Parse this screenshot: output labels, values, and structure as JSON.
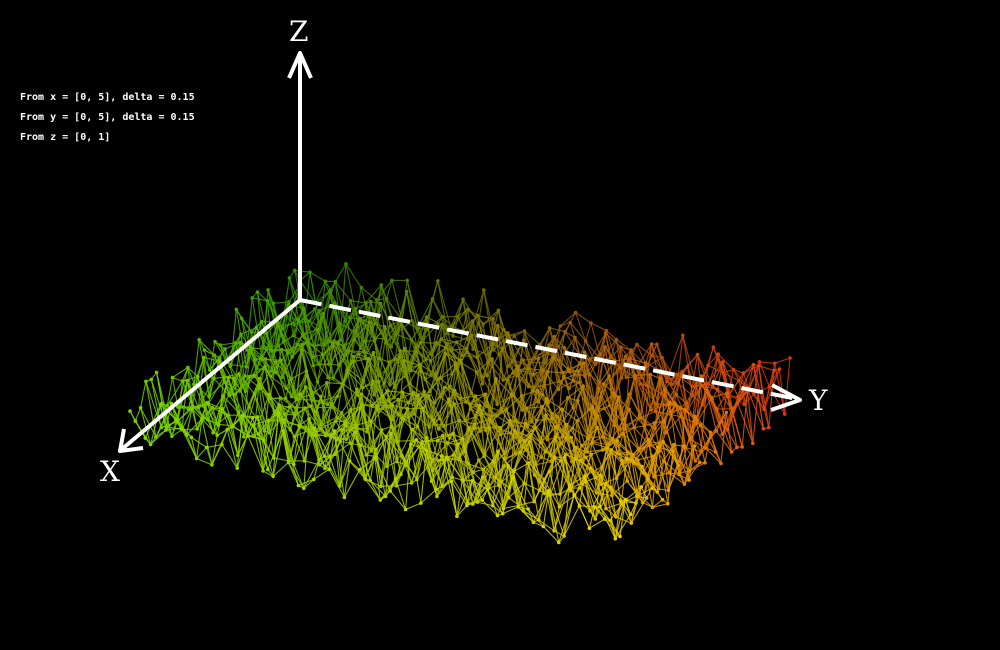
{
  "info": {
    "x_range": "From x = [0, 5], delta = 0.15",
    "y_range": "From y = [0, 5], delta = 0.15",
    "z_range": "From z = [0, 1]"
  },
  "axes": {
    "x_label": "X",
    "y_label": "Y",
    "z_label": "Z"
  },
  "surface": {
    "x_range": [
      0,
      5
    ],
    "y_range": [
      0,
      5
    ],
    "z_range": [
      0,
      1
    ],
    "delta": 0.15,
    "point_count": 33,
    "random_seed": 7
  },
  "colors": {
    "background": "#000000",
    "axis": "#ffffff",
    "gradient_x_start": "#2a8c00",
    "gradient_near": "#7ad800",
    "gradient_far": "#e03010",
    "gradient_corner": "#e8d400"
  }
}
